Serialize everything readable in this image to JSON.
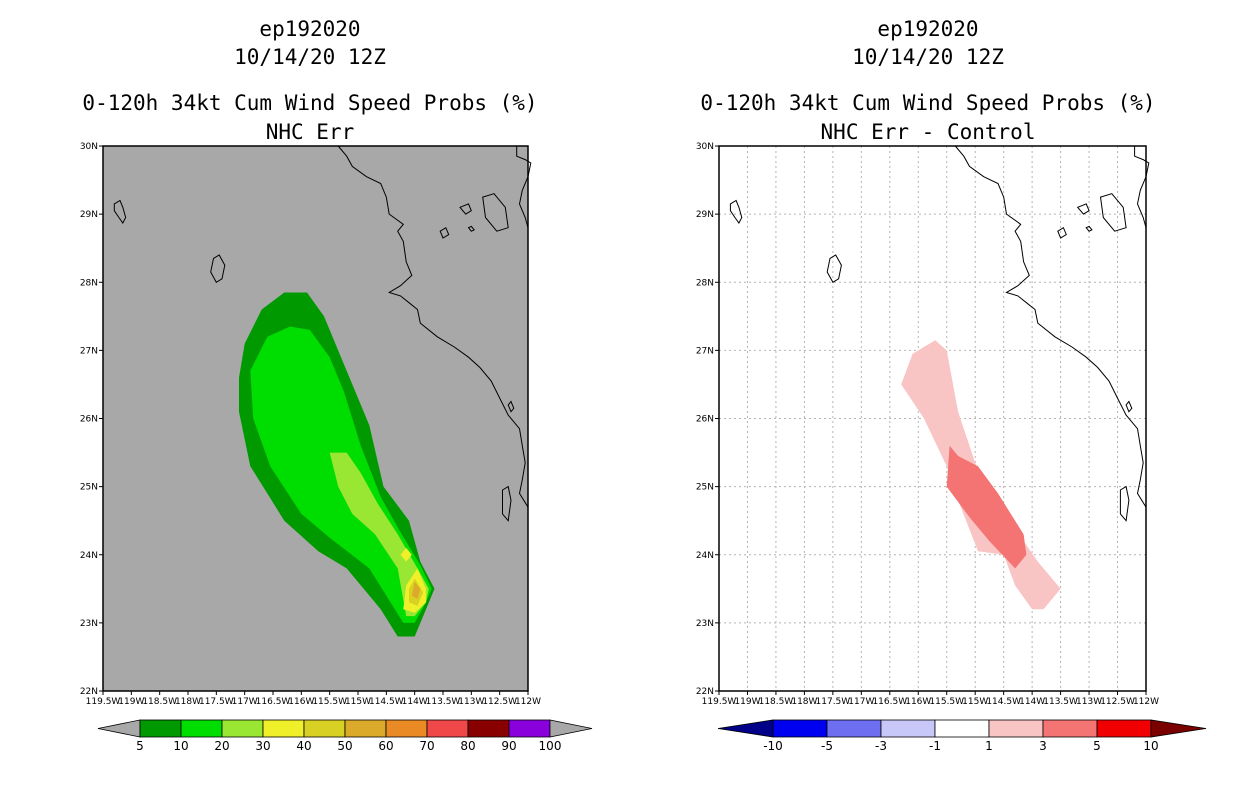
{
  "panels": [
    {
      "id": "left",
      "title_lines": [
        "ep192020",
        "10/14/20 12Z",
        "0-120h 34kt Cum Wind Speed Probs (%)",
        "NHC Err"
      ],
      "background": "#a8a8a8",
      "colorbar": {
        "labels": [
          "5",
          "10",
          "20",
          "30",
          "40",
          "50",
          "60",
          "70",
          "80",
          "90",
          "100"
        ],
        "colors": [
          "#009900",
          "#00dd00",
          "#99e633",
          "#f0f02a",
          "#d9d024",
          "#dcaa2a",
          "#ea8a24",
          "#f04848",
          "#880000",
          "#8a00dd"
        ],
        "under_color": "#a8a8a8",
        "over_color": "#a8a8a8"
      }
    },
    {
      "id": "right",
      "title_lines": [
        "ep192020",
        "10/14/20 12Z",
        "0-120h 34kt Cum Wind Speed Probs (%)",
        "NHC Err - Control"
      ],
      "background": "#ffffff",
      "colorbar": {
        "labels": [
          "-10",
          "-5",
          "-3",
          "-1",
          "1",
          "3",
          "5",
          "10"
        ],
        "colors": [
          "#0000f0",
          "#6e6ef0",
          "#c8c8f8",
          "#ffffff",
          "#f8c4c4",
          "#f47474",
          "#f00000"
        ],
        "under_color": "#000088",
        "over_color": "#7a0000"
      }
    }
  ],
  "axes": {
    "lat_labels": [
      "30N",
      "29N",
      "28N",
      "27N",
      "26N",
      "25N",
      "24N",
      "23N",
      "22N"
    ],
    "lon_labels": [
      "119.5W",
      "119W",
      "118.5W",
      "118W",
      "117.5W",
      "117W",
      "116.5W",
      "116W",
      "115.5W",
      "115W",
      "114.5W",
      "114W",
      "113.5W",
      "113W",
      "112.5W",
      "112W"
    ]
  },
  "chart_data": [
    {
      "type": "contour-map",
      "title": "0-120h 34kt Cum Wind Speed Probs (%)",
      "subtitle": "NHC Err",
      "storm": "ep192020",
      "time": "10/14/20 12Z",
      "units": "%",
      "levels": [
        5,
        10,
        20,
        30,
        40,
        50,
        60,
        70,
        80,
        90,
        100
      ],
      "xlim": [
        -119.5,
        -112
      ],
      "ylim": [
        22,
        30
      ],
      "regions": [
        {
          "level": 5,
          "color": "#009900",
          "polygon": [
            [
              -114.3,
              22.8
            ],
            [
              -114.0,
              22.8
            ],
            [
              -113.8,
              23.2
            ],
            [
              -113.65,
              23.5
            ],
            [
              -113.9,
              23.9
            ],
            [
              -114.1,
              24.5
            ],
            [
              -114.55,
              25.0
            ],
            [
              -114.8,
              25.9
            ],
            [
              -115.3,
              26.9
            ],
            [
              -115.6,
              27.5
            ],
            [
              -115.9,
              27.85
            ],
            [
              -116.3,
              27.85
            ],
            [
              -116.7,
              27.6
            ],
            [
              -117.0,
              27.1
            ],
            [
              -117.1,
              26.6
            ],
            [
              -117.1,
              26.1
            ],
            [
              -116.9,
              25.3
            ],
            [
              -116.3,
              24.5
            ],
            [
              -115.7,
              24.05
            ],
            [
              -115.2,
              23.8
            ],
            [
              -114.6,
              23.2
            ]
          ]
        },
        {
          "level": 10,
          "color": "#00dd00",
          "polygon": [
            [
              -114.2,
              23.0
            ],
            [
              -114.0,
              23.0
            ],
            [
              -113.8,
              23.3
            ],
            [
              -113.7,
              23.5
            ],
            [
              -113.9,
              23.85
            ],
            [
              -114.3,
              24.4
            ],
            [
              -114.6,
              24.85
            ],
            [
              -114.95,
              25.6
            ],
            [
              -115.25,
              26.4
            ],
            [
              -115.5,
              26.9
            ],
            [
              -115.85,
              27.3
            ],
            [
              -116.2,
              27.35
            ],
            [
              -116.6,
              27.2
            ],
            [
              -116.9,
              26.7
            ],
            [
              -116.85,
              26.0
            ],
            [
              -116.55,
              25.3
            ],
            [
              -116.0,
              24.6
            ],
            [
              -115.5,
              24.25
            ],
            [
              -114.8,
              23.8
            ],
            [
              -114.5,
              23.4
            ]
          ]
        },
        {
          "level": 20,
          "color": "#99e633",
          "polygon": [
            [
              -114.15,
              23.1
            ],
            [
              -114.0,
              23.1
            ],
            [
              -113.8,
              23.3
            ],
            [
              -113.75,
              23.5
            ],
            [
              -113.95,
              23.8
            ],
            [
              -114.3,
              24.3
            ],
            [
              -114.65,
              24.75
            ],
            [
              -114.95,
              25.2
            ],
            [
              -115.2,
              25.5
            ],
            [
              -115.5,
              25.5
            ],
            [
              -115.35,
              25.0
            ],
            [
              -115.1,
              24.6
            ],
            [
              -114.7,
              24.3
            ],
            [
              -114.3,
              23.8
            ]
          ]
        },
        {
          "level": 30,
          "color": "#f0f02a",
          "polygon": [
            [
              -114.2,
              23.2
            ],
            [
              -114.0,
              23.15
            ],
            [
              -113.8,
              23.3
            ],
            [
              -113.8,
              23.5
            ],
            [
              -113.95,
              23.8
            ],
            [
              -114.15,
              23.55
            ]
          ]
        },
        {
          "level": 40,
          "color": "#d9d024",
          "polygon": [
            [
              -114.1,
              23.3
            ],
            [
              -113.95,
              23.25
            ],
            [
              -113.85,
              23.45
            ],
            [
              -114.0,
              23.65
            ],
            [
              -114.1,
              23.5
            ]
          ]
        },
        {
          "level": 50,
          "color": "#dcaa2a",
          "polygon": [
            [
              -114.05,
              23.4
            ],
            [
              -113.95,
              23.35
            ],
            [
              -113.9,
              23.5
            ],
            [
              -114.0,
              23.6
            ]
          ]
        },
        {
          "level": 30,
          "color": "#f0f02a",
          "polygon": [
            [
              -114.25,
              24.0
            ],
            [
              -114.15,
              23.9
            ],
            [
              -114.05,
              24.0
            ],
            [
              -114.15,
              24.1
            ]
          ]
        }
      ]
    },
    {
      "type": "contour-map",
      "title": "0-120h 34kt Cum Wind Speed Probs (%)",
      "subtitle": "NHC Err - Control",
      "storm": "ep192020",
      "time": "10/14/20 12Z",
      "units": "%",
      "levels": [
        -10,
        -5,
        -3,
        -1,
        1,
        3,
        5,
        10
      ],
      "xlim": [
        -119.5,
        -112
      ],
      "ylim": [
        22,
        30
      ],
      "regions": [
        {
          "level": 1,
          "color": "#f8c4c4",
          "polygon": [
            [
              -113.5,
              23.5
            ],
            [
              -113.8,
              23.2
            ],
            [
              -114.0,
              23.2
            ],
            [
              -114.3,
              23.55
            ],
            [
              -114.5,
              24.0
            ],
            [
              -114.95,
              24.05
            ],
            [
              -115.3,
              24.8
            ],
            [
              -115.5,
              25.3
            ],
            [
              -115.9,
              26.0
            ],
            [
              -116.3,
              26.5
            ],
            [
              -116.1,
              26.95
            ],
            [
              -115.7,
              27.15
            ],
            [
              -115.5,
              27.0
            ],
            [
              -115.3,
              26.1
            ],
            [
              -114.9,
              25.1
            ],
            [
              -114.4,
              24.5
            ],
            [
              -113.9,
              23.9
            ]
          ]
        },
        {
          "level": 3,
          "color": "#f47474",
          "polygon": [
            [
              -114.3,
              23.8
            ],
            [
              -114.1,
              24.0
            ],
            [
              -114.15,
              24.3
            ],
            [
              -114.6,
              24.9
            ],
            [
              -114.95,
              25.3
            ],
            [
              -115.3,
              25.45
            ],
            [
              -115.45,
              25.6
            ],
            [
              -115.5,
              25.0
            ],
            [
              -115.1,
              24.55
            ],
            [
              -114.75,
              24.2
            ]
          ]
        }
      ]
    }
  ]
}
